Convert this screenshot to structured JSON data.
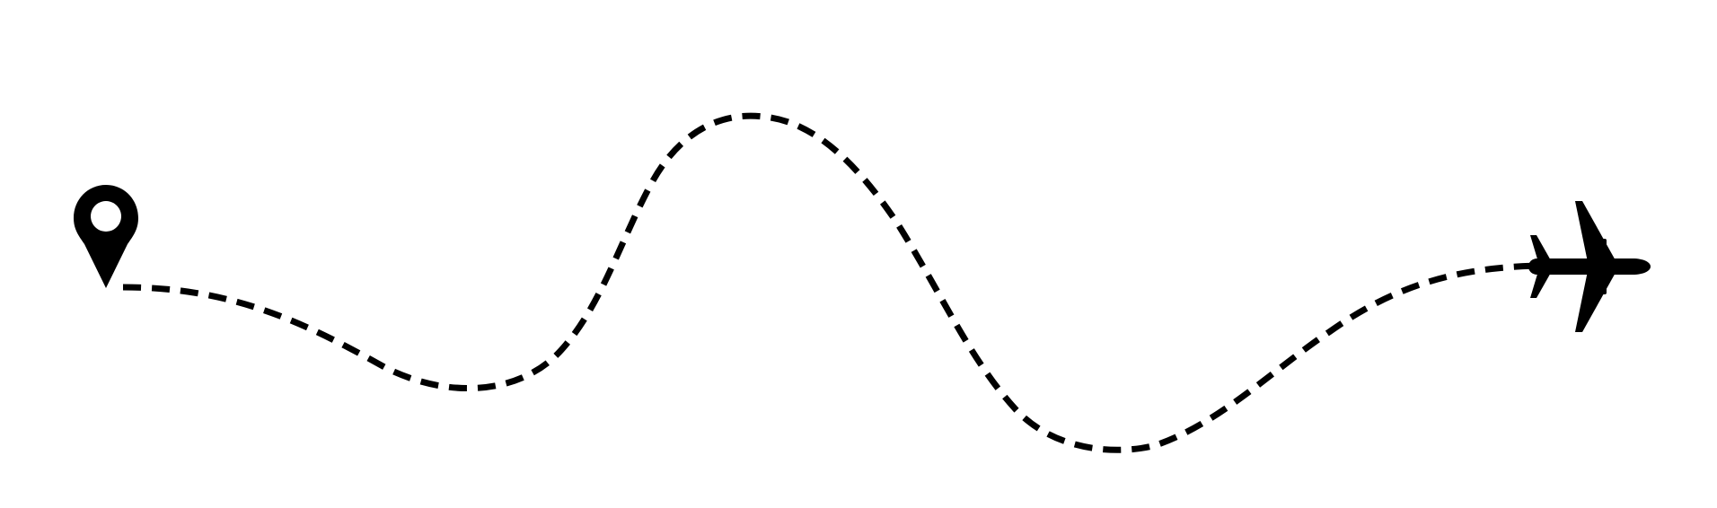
{
  "illustration": {
    "background_color": "#ffffff",
    "ink_color": "#000000",
    "start_icon": "map-pin-icon",
    "end_icon": "airplane-icon",
    "path_style": "dashed"
  }
}
